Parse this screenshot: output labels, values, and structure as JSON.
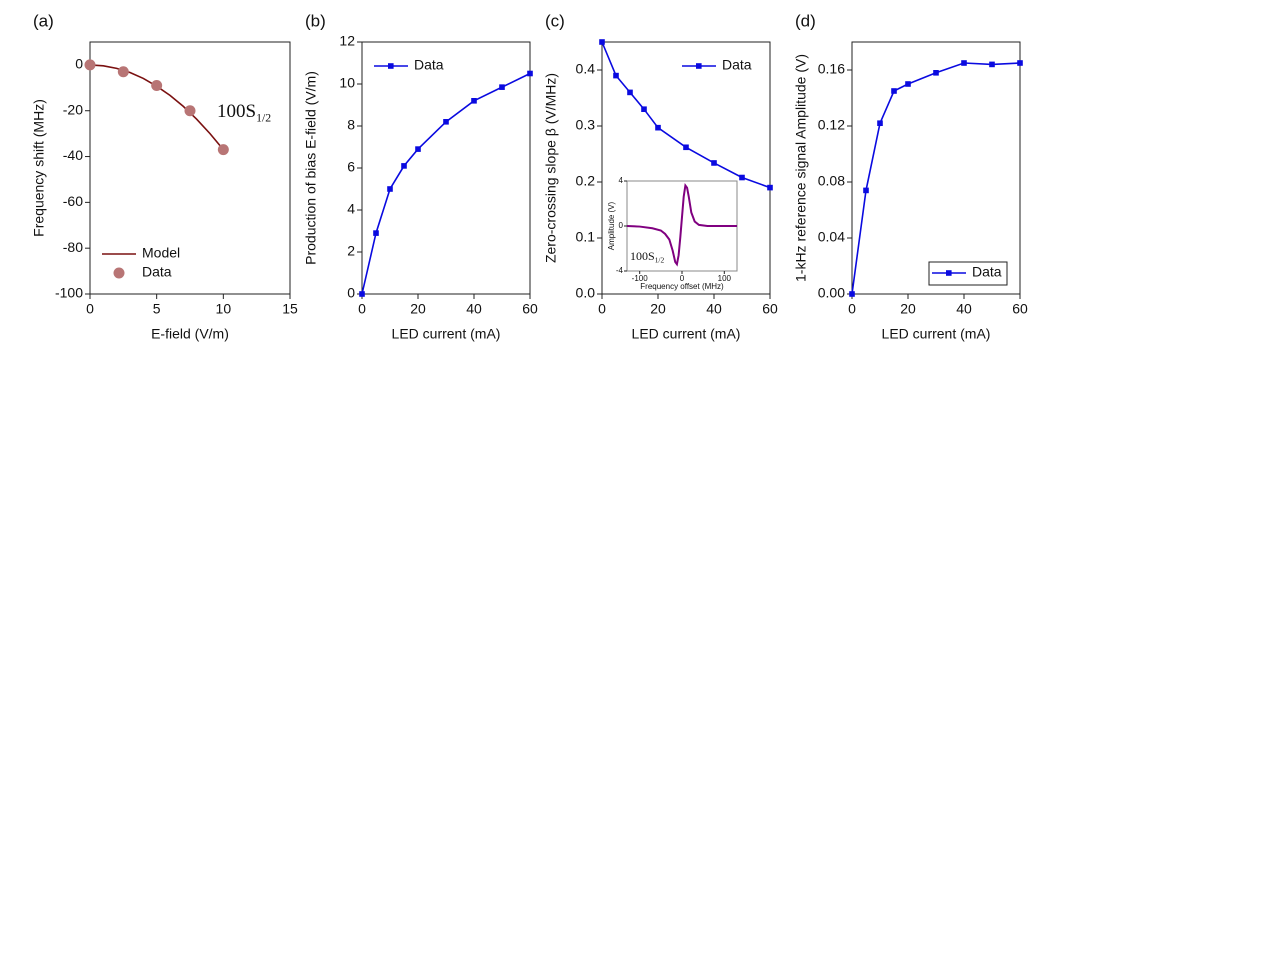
{
  "chart_data": [
    {
      "type": "scatter",
      "label": "(a)",
      "x_label": "E-field (V/m)",
      "y_label": "Frequency shift (MHz)",
      "xlim": [
        0,
        15
      ],
      "ylim": [
        -100,
        10
      ],
      "xticks": [
        0,
        5,
        10,
        15
      ],
      "yticks": [
        0,
        -20,
        -40,
        -60,
        -80,
        -100
      ],
      "legend": "lower left",
      "legend_frame": false,
      "annotation": {
        "main": "100S",
        "sub": "1/2"
      },
      "series": [
        {
          "name": "Model",
          "mode": "line",
          "color": "#7a1010",
          "x": [
            0,
            1,
            2,
            3,
            4,
            5,
            6,
            7,
            8,
            9,
            10
          ],
          "values": [
            0,
            -0.4,
            -1.5,
            -3.3,
            -5.9,
            -9.3,
            -13.3,
            -18.1,
            -23.7,
            -30,
            -37
          ]
        },
        {
          "name": "Data",
          "mode": "marker",
          "color": "#b87575",
          "x": [
            0,
            2.5,
            5,
            7.5,
            10
          ],
          "values": [
            0,
            -3,
            -9,
            -20,
            -37
          ]
        }
      ]
    },
    {
      "type": "line",
      "label": "(b)",
      "x_label": "LED current (mA)",
      "y_label": "Production of bias E-field (V/m)",
      "xlim": [
        0,
        60
      ],
      "ylim": [
        0,
        12
      ],
      "xticks": [
        0,
        20,
        40,
        60
      ],
      "yticks": [
        0,
        2,
        4,
        6,
        8,
        10,
        12
      ],
      "legend": "upper left",
      "legend_frame": false,
      "x": [
        0,
        5,
        10,
        15,
        20,
        30,
        40,
        50,
        60
      ],
      "series": [
        {
          "name": "Data",
          "mode": "line+marker",
          "color": "#0a0ae0",
          "values": [
            0,
            2.9,
            5.0,
            6.1,
            6.9,
            8.2,
            9.2,
            9.85,
            10.5
          ]
        }
      ]
    },
    {
      "type": "line",
      "label": "(c)",
      "x_label": "LED current (mA)",
      "y_label": "Zero-crossing slope β (V/MHz)",
      "xlim": [
        0,
        60
      ],
      "ylim": [
        0,
        0.45
      ],
      "xticks": [
        0,
        20,
        40,
        60
      ],
      "yticks": [
        {
          "value": 0,
          "label": "0.0"
        },
        0.1,
        0.2,
        0.3,
        0.4
      ],
      "legend": "upper right",
      "legend_frame": false,
      "x": [
        0,
        5,
        10,
        15,
        20,
        30,
        40,
        50,
        60
      ],
      "series": [
        {
          "name": "Data",
          "mode": "line+marker",
          "color": "#0a0ae0",
          "values": [
            0.45,
            0.39,
            0.36,
            0.33,
            0.297,
            0.262,
            0.234,
            0.208,
            0.19
          ]
        }
      ],
      "inset": {
        "type": "line",
        "x_label": "Frequency offset (MHz)",
        "y_label": "Amplitude (V)",
        "xlim": [
          -130,
          130
        ],
        "ylim": [
          -4,
          4
        ],
        "xticks": [
          -100,
          0,
          100
        ],
        "yticks": [
          -4,
          0,
          4
        ],
        "annotation": {
          "main": "100S",
          "sub": "1/2"
        },
        "series": [
          {
            "mode": "line",
            "color": "#800080",
            "x": [
              -130,
              -100,
              -70,
              -50,
              -40,
              -30,
              -22,
              -16,
              -12,
              -8,
              -4,
              0,
              4,
              8,
              12,
              16,
              22,
              30,
              40,
              60,
              100,
              130
            ],
            "values": [
              0,
              -0.05,
              -0.2,
              -0.4,
              -0.7,
              -1.2,
              -2.2,
              -3.2,
              -3.4,
              -2.6,
              -1.0,
              0.8,
              2.6,
              3.6,
              3.4,
              2.6,
              1.2,
              0.4,
              0.1,
              0,
              0,
              0
            ]
          }
        ]
      }
    },
    {
      "type": "line",
      "label": "(d)",
      "x_label": "LED current (mA)",
      "y_label": "1-kHz reference signal Amplitude (V)",
      "xlim": [
        0,
        60
      ],
      "ylim": [
        0,
        0.18
      ],
      "xticks": [
        0,
        20,
        40,
        60
      ],
      "yticks": [
        {
          "value": 0,
          "label": "0.00"
        },
        {
          "value": 0.04,
          "label": "0.04"
        },
        {
          "value": 0.08,
          "label": "0.08"
        },
        {
          "value": 0.12,
          "label": "0.12"
        },
        {
          "value": 0.16,
          "label": "0.16"
        }
      ],
      "legend": "lower right",
      "legend_frame": true,
      "x": [
        0,
        5,
        10,
        15,
        20,
        30,
        40,
        50,
        60
      ],
      "series": [
        {
          "name": "Data",
          "mode": "line+marker",
          "color": "#0a0ae0",
          "values": [
            0,
            0.074,
            0.122,
            0.145,
            0.15,
            0.158,
            0.165,
            0.164,
            0.165
          ]
        }
      ]
    }
  ]
}
